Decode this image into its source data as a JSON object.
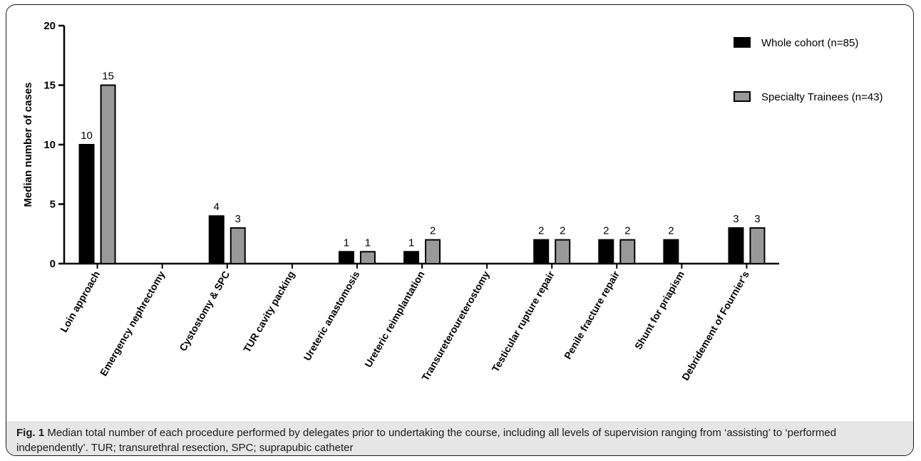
{
  "chart_data": {
    "type": "bar",
    "ylabel": "Median number of cases",
    "xlabel": "",
    "ylim": [
      0,
      20
    ],
    "yticks": [
      0,
      5,
      10,
      15,
      20
    ],
    "categories": [
      "Loin approach",
      "Emergency nephrectomy",
      "Cystostomy & SPC",
      "TUR cavity packing",
      "Ureteric anastomosis",
      "Ureteric reimplantation",
      "Transureteroureterostomy",
      "Testicular rupture repair",
      "Penile fracture repair",
      "Shunt for priapism",
      "Debridement of Fournier's"
    ],
    "series": [
      {
        "name": "Whole cohort (n=85)",
        "color": "#000000",
        "values": [
          10,
          0,
          4,
          0,
          1,
          1,
          0,
          2,
          2,
          2,
          3
        ]
      },
      {
        "name": "Specialty Trainees (n=43)",
        "color": "#999999",
        "values": [
          15,
          0,
          3,
          0,
          1,
          2,
          0,
          2,
          2,
          0,
          3
        ]
      }
    ],
    "data_labels": [
      [
        "10",
        "",
        "4",
        "",
        "1",
        "1",
        "",
        "2",
        "2",
        "2",
        "3"
      ],
      [
        "15",
        "",
        "3",
        "",
        "1",
        "2",
        "",
        "2",
        "2",
        "",
        "3"
      ]
    ],
    "legend_position": "top-right",
    "grid": false
  },
  "caption": {
    "label": "Fig. 1",
    "text": " Median total number of each procedure performed by delegates prior to undertaking the course, including all levels of supervision ranging from ‘assisting’ to ‘performed independently’. TUR; transurethral resection, SPC; suprapubic catheter"
  }
}
